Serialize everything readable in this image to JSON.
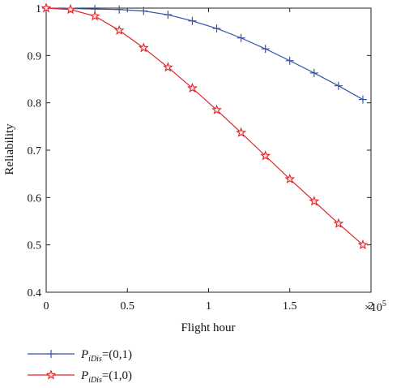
{
  "chart_data": {
    "type": "line",
    "xlabel": "Flight hour",
    "ylabel": "Reliability",
    "x_multiplier_label": "×10",
    "x_multiplier_exp": "5",
    "xlim": [
      0,
      2
    ],
    "ylim": [
      0.4,
      1.0
    ],
    "xticks": [
      0,
      0.5,
      1,
      1.5,
      2
    ],
    "xtick_labels": [
      "0",
      "0.5",
      "1",
      "1.5",
      "2"
    ],
    "yticks": [
      0.4,
      0.5,
      0.6,
      0.7,
      0.8,
      0.9,
      1.0
    ],
    "ytick_labels": [
      "0.4",
      "0.5",
      "0.6",
      "0.7",
      "0.8",
      "0.9",
      "1"
    ],
    "x": [
      0,
      0.15,
      0.3,
      0.45,
      0.6,
      0.75,
      0.9,
      1.05,
      1.2,
      1.35,
      1.5,
      1.65,
      1.8,
      1.95
    ],
    "series": [
      {
        "legend_prefix": "P",
        "legend_sub": "iDis",
        "legend_suffix": "=(0,1)",
        "color": "#3355aa",
        "marker": "plus",
        "values": [
          1.0,
          0.999,
          0.998,
          0.997,
          0.994,
          0.986,
          0.973,
          0.957,
          0.937,
          0.914,
          0.889,
          0.863,
          0.836,
          0.807
        ]
      },
      {
        "legend_prefix": "P",
        "legend_sub": "iDis",
        "legend_suffix": "=(1,0)",
        "color": "#e0242b",
        "marker": "star",
        "values": [
          1.0,
          0.997,
          0.983,
          0.953,
          0.916,
          0.875,
          0.831,
          0.785,
          0.737,
          0.688,
          0.639,
          0.592,
          0.545,
          0.5
        ]
      }
    ],
    "legend_position": "below"
  }
}
